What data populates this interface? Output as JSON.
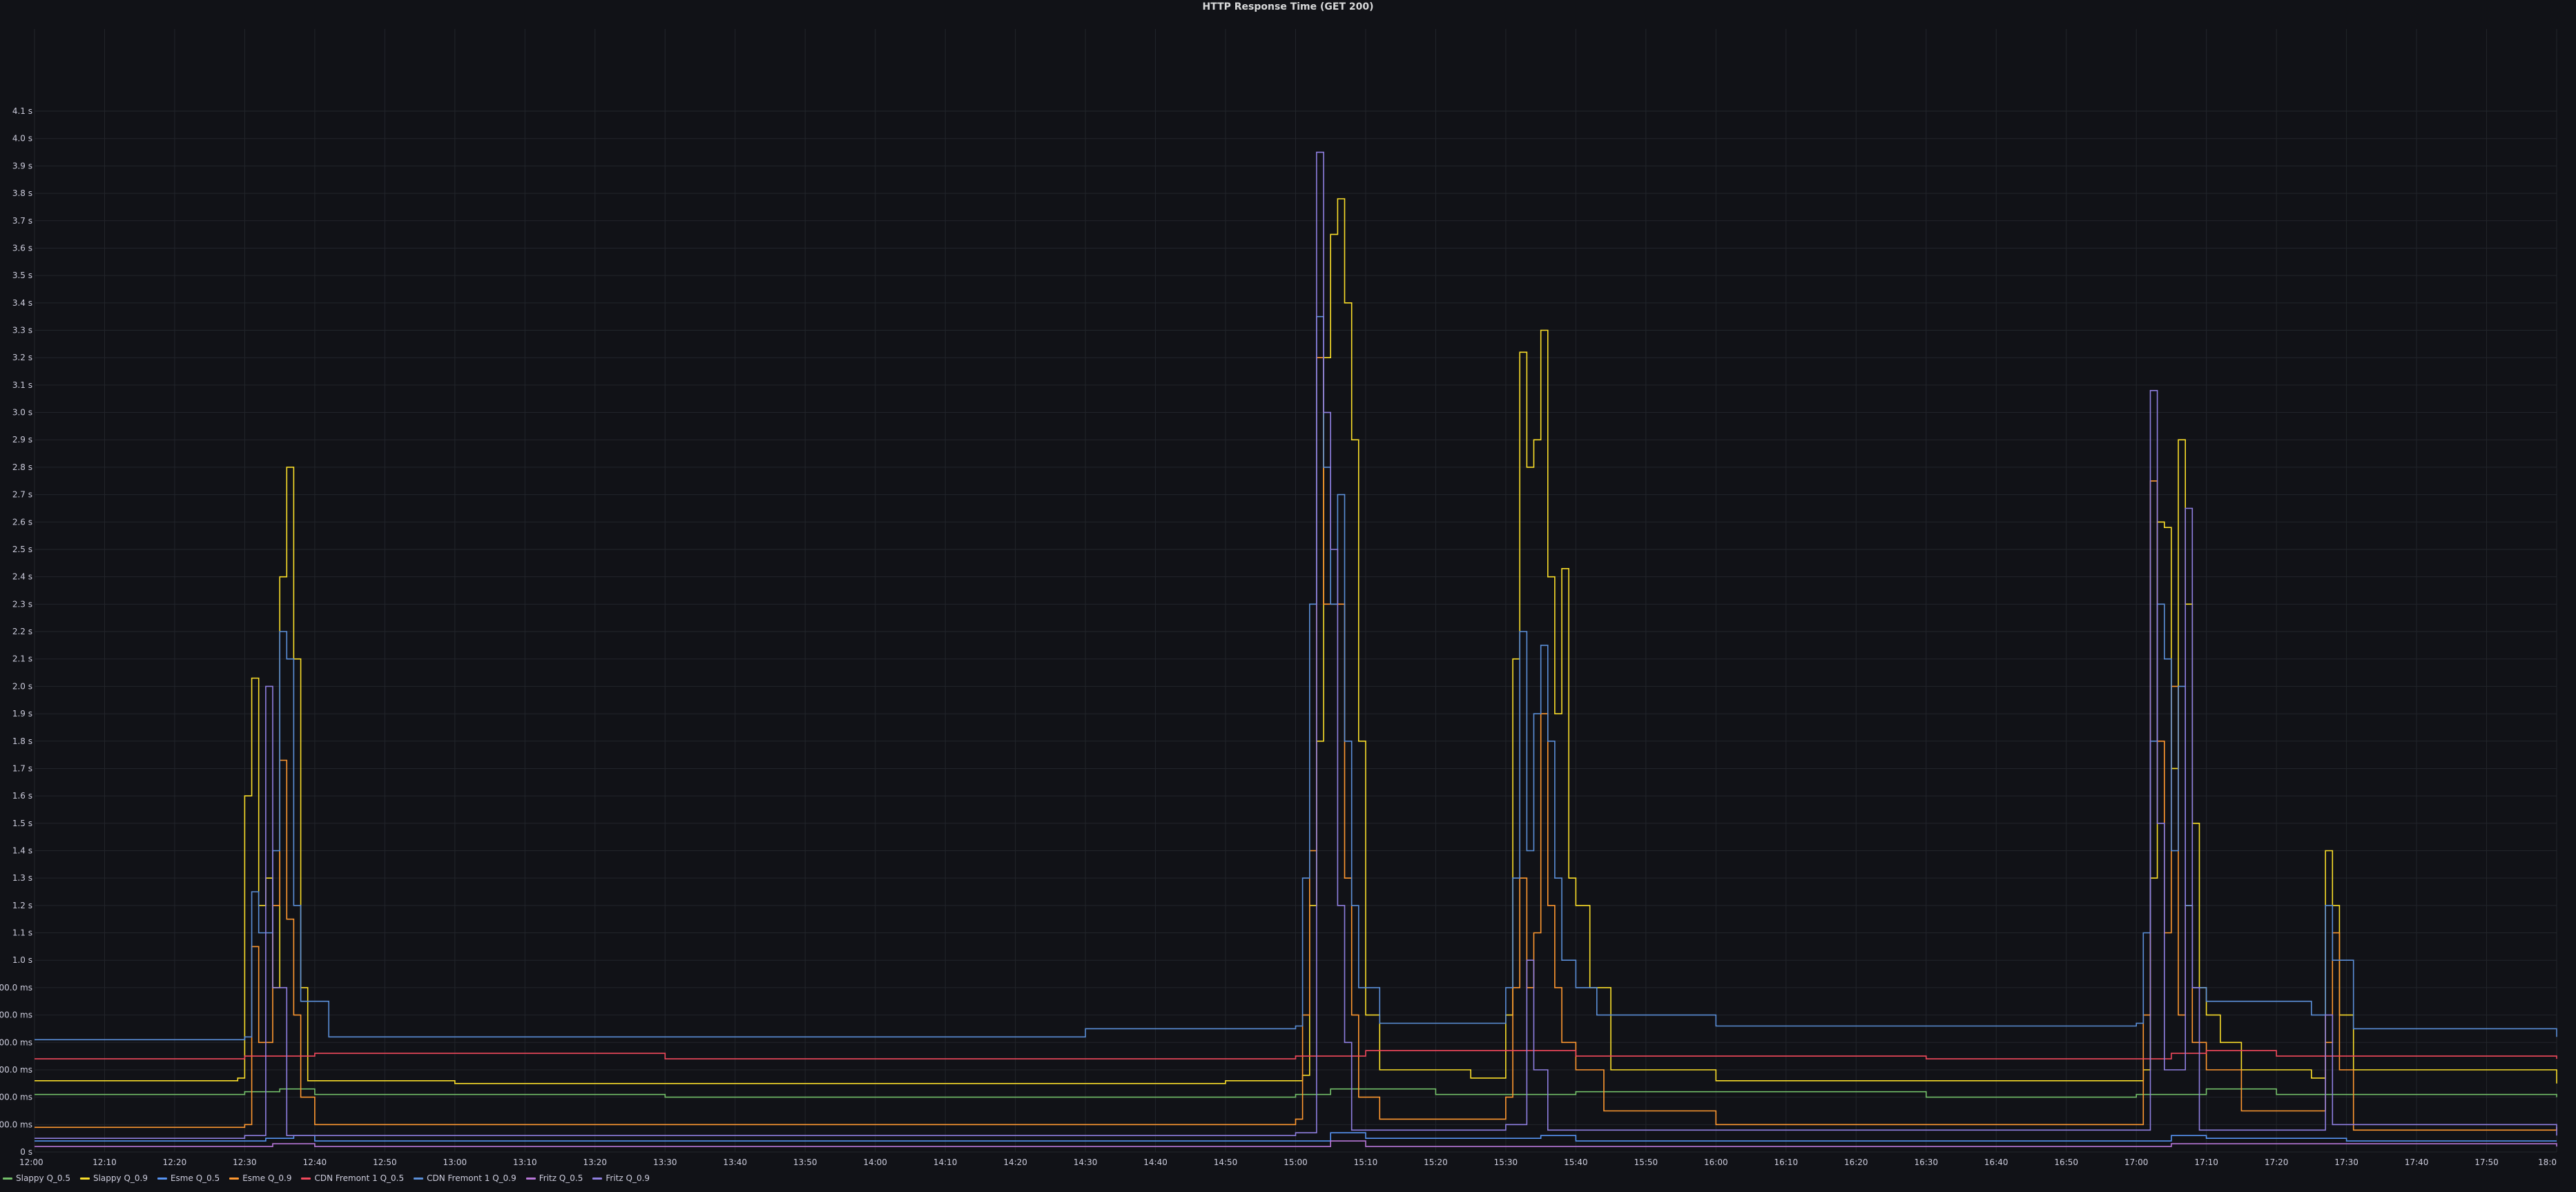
{
  "chart_data": {
    "type": "line",
    "title": "HTTP Response Time (GET 200)",
    "xlabel": "",
    "ylabel": "",
    "x_ticks": [
      "12:00",
      "12:10",
      "12:20",
      "12:30",
      "12:40",
      "12:50",
      "13:00",
      "13:10",
      "13:20",
      "13:30",
      "13:40",
      "13:50",
      "14:00",
      "14:10",
      "14:20",
      "14:30",
      "14:40",
      "14:50",
      "15:00",
      "15:10",
      "15:20",
      "15:30",
      "15:40",
      "15:50",
      "16:00",
      "16:10",
      "16:20",
      "16:30",
      "16:40",
      "16:50",
      "17:00",
      "17:10",
      "17:20",
      "17:30",
      "17:40",
      "17:50",
      "18:0"
    ],
    "y_ticks": [
      "0 s",
      "00.0 ms",
      "00.0 ms",
      "00.0 ms",
      "00.0 ms",
      "00.0 ms",
      "00.0 ms",
      "1.0 s",
      "1.1 s",
      "1.2 s",
      "1.3 s",
      "1.4 s",
      "1.5 s",
      "1.6 s",
      "1.7 s",
      "1.8 s",
      "1.9 s",
      "2.0 s",
      "2.1 s",
      "2.2 s",
      "2.3 s",
      "2.4 s",
      "2.5 s",
      "2.6 s",
      "2.7 s",
      "2.8 s",
      "2.9 s",
      "3.0 s",
      "3.1 s",
      "3.2 s",
      "3.3 s",
      "3.4 s",
      "3.5 s",
      "3.6 s",
      "3.7 s",
      "3.8 s",
      "3.9 s",
      "4.0 s",
      "4.1 s"
    ],
    "xlim": [
      "12:00",
      "18:00"
    ],
    "ylim": [
      0,
      4.1
    ],
    "y_unit": "s",
    "grid": true,
    "legend_position": "bottom-left",
    "series": [
      {
        "name": "Slappy Q_0.5",
        "color": "#73bf69",
        "points": [
          [
            "12:00",
            0.21
          ],
          [
            "12:30",
            0.22
          ],
          [
            "12:35",
            0.23
          ],
          [
            "12:40",
            0.21
          ],
          [
            "13:30",
            0.2
          ],
          [
            "14:30",
            0.2
          ],
          [
            "15:00",
            0.21
          ],
          [
            "15:05",
            0.23
          ],
          [
            "15:20",
            0.21
          ],
          [
            "15:40",
            0.22
          ],
          [
            "16:30",
            0.2
          ],
          [
            "17:00",
            0.21
          ],
          [
            "17:10",
            0.23
          ],
          [
            "17:20",
            0.21
          ],
          [
            "18:00",
            0.2
          ]
        ]
      },
      {
        "name": "Slappy Q_0.9",
        "color": "#fade2a",
        "points": [
          [
            "12:00",
            0.26
          ],
          [
            "12:29",
            0.27
          ],
          [
            "12:30",
            1.3
          ],
          [
            "12:31",
            1.73
          ],
          [
            "12:32",
            0.9
          ],
          [
            "12:33",
            1.0
          ],
          [
            "12:34",
            0.6
          ],
          [
            "12:35",
            2.1
          ],
          [
            "12:36",
            2.5
          ],
          [
            "12:37",
            1.8
          ],
          [
            "12:38",
            0.6
          ],
          [
            "12:39",
            0.26
          ],
          [
            "13:00",
            0.25
          ],
          [
            "14:00",
            0.25
          ],
          [
            "14:50",
            0.26
          ],
          [
            "15:01",
            0.28
          ],
          [
            "15:02",
            0.9
          ],
          [
            "15:03",
            1.5
          ],
          [
            "15:04",
            2.9
          ],
          [
            "15:05",
            3.35
          ],
          [
            "15:06",
            3.48
          ],
          [
            "15:07",
            3.1
          ],
          [
            "15:08",
            2.6
          ],
          [
            "15:09",
            1.5
          ],
          [
            "15:10",
            0.5
          ],
          [
            "15:12",
            0.3
          ],
          [
            "15:25",
            0.27
          ],
          [
            "15:30",
            0.5
          ],
          [
            "15:31",
            1.8
          ],
          [
            "15:32",
            2.92
          ],
          [
            "15:33",
            2.5
          ],
          [
            "15:34",
            2.6
          ],
          [
            "15:35",
            3.0
          ],
          [
            "15:36",
            2.1
          ],
          [
            "15:37",
            1.6
          ],
          [
            "15:38",
            2.13
          ],
          [
            "15:39",
            1.0
          ],
          [
            "15:40",
            0.9
          ],
          [
            "15:42",
            0.6
          ],
          [
            "15:45",
            0.3
          ],
          [
            "16:00",
            0.26
          ],
          [
            "17:00",
            0.26
          ],
          [
            "17:01",
            0.3
          ],
          [
            "17:02",
            1.0
          ],
          [
            "17:03",
            2.3
          ],
          [
            "17:04",
            2.28
          ],
          [
            "17:05",
            1.4
          ],
          [
            "17:06",
            2.6
          ],
          [
            "17:07",
            2.0
          ],
          [
            "17:08",
            1.2
          ],
          [
            "17:09",
            0.6
          ],
          [
            "17:10",
            0.5
          ],
          [
            "17:12",
            0.4
          ],
          [
            "17:15",
            0.3
          ],
          [
            "17:25",
            0.27
          ],
          [
            "17:27",
            1.1
          ],
          [
            "17:28",
            0.9
          ],
          [
            "17:29",
            0.5
          ],
          [
            "17:31",
            0.3
          ],
          [
            "18:00",
            0.25
          ]
        ]
      },
      {
        "name": "Esme Q_0.5",
        "color": "#5794f2",
        "points": [
          [
            "12:00",
            0.04
          ],
          [
            "12:30",
            0.04
          ],
          [
            "12:33",
            0.05
          ],
          [
            "12:37",
            0.06
          ],
          [
            "12:40",
            0.04
          ],
          [
            "15:00",
            0.04
          ],
          [
            "15:05",
            0.07
          ],
          [
            "15:10",
            0.05
          ],
          [
            "15:35",
            0.06
          ],
          [
            "15:40",
            0.04
          ],
          [
            "17:05",
            0.06
          ],
          [
            "17:10",
            0.05
          ],
          [
            "17:30",
            0.04
          ],
          [
            "18:00",
            0.04
          ]
        ]
      },
      {
        "name": "Esme Q_0.9",
        "color": "#ff9830",
        "points": [
          [
            "12:00",
            0.09
          ],
          [
            "12:30",
            0.1
          ],
          [
            "12:31",
            0.75
          ],
          [
            "12:32",
            0.4
          ],
          [
            "12:34",
            0.9
          ],
          [
            "12:35",
            1.43
          ],
          [
            "12:36",
            0.85
          ],
          [
            "12:37",
            0.5
          ],
          [
            "12:38",
            0.2
          ],
          [
            "12:40",
            0.1
          ],
          [
            "14:00",
            0.1
          ],
          [
            "15:00",
            0.12
          ],
          [
            "15:01",
            0.5
          ],
          [
            "15:02",
            1.1
          ],
          [
            "15:03",
            2.9
          ],
          [
            "15:04",
            2.0
          ],
          [
            "15:05",
            2.0
          ],
          [
            "15:06",
            2.0
          ],
          [
            "15:07",
            1.0
          ],
          [
            "15:08",
            0.5
          ],
          [
            "15:09",
            0.2
          ],
          [
            "15:12",
            0.12
          ],
          [
            "15:30",
            0.2
          ],
          [
            "15:31",
            0.6
          ],
          [
            "15:32",
            1.0
          ],
          [
            "15:33",
            0.6
          ],
          [
            "15:34",
            0.8
          ],
          [
            "15:35",
            1.6
          ],
          [
            "15:36",
            0.9
          ],
          [
            "15:37",
            0.6
          ],
          [
            "15:38",
            0.4
          ],
          [
            "15:40",
            0.3
          ],
          [
            "15:44",
            0.15
          ],
          [
            "16:00",
            0.1
          ],
          [
            "17:00",
            0.1
          ],
          [
            "17:01",
            0.5
          ],
          [
            "17:02",
            2.45
          ],
          [
            "17:03",
            1.5
          ],
          [
            "17:04",
            0.8
          ],
          [
            "17:05",
            1.7
          ],
          [
            "17:06",
            0.5
          ],
          [
            "17:07",
            0.9
          ],
          [
            "17:08",
            0.4
          ],
          [
            "17:10",
            0.3
          ],
          [
            "17:15",
            0.15
          ],
          [
            "17:27",
            0.4
          ],
          [
            "17:28",
            0.8
          ],
          [
            "17:29",
            0.3
          ],
          [
            "17:31",
            0.08
          ],
          [
            "18:00",
            0.09
          ]
        ]
      },
      {
        "name": "CDN Fremont 1 Q_0.5",
        "color": "#f2495c",
        "points": [
          [
            "12:00",
            0.34
          ],
          [
            "12:30",
            0.35
          ],
          [
            "12:40",
            0.36
          ],
          [
            "13:30",
            0.34
          ],
          [
            "14:30",
            0.34
          ],
          [
            "15:00",
            0.35
          ],
          [
            "15:10",
            0.37
          ],
          [
            "15:40",
            0.35
          ],
          [
            "16:30",
            0.34
          ],
          [
            "17:05",
            0.36
          ],
          [
            "17:10",
            0.37
          ],
          [
            "17:20",
            0.35
          ],
          [
            "18:00",
            0.34
          ]
        ]
      },
      {
        "name": "CDN Fremont 1 Q_0.9",
        "color": "#5b8fd8",
        "points": [
          [
            "12:00",
            0.41
          ],
          [
            "12:30",
            0.42
          ],
          [
            "12:31",
            0.95
          ],
          [
            "12:32",
            0.8
          ],
          [
            "12:34",
            1.1
          ],
          [
            "12:35",
            1.9
          ],
          [
            "12:36",
            1.8
          ],
          [
            "12:37",
            0.9
          ],
          [
            "12:38",
            0.55
          ],
          [
            "12:40",
            0.55
          ],
          [
            "12:42",
            0.42
          ],
          [
            "13:00",
            0.42
          ],
          [
            "14:00",
            0.42
          ],
          [
            "14:30",
            0.45
          ],
          [
            "15:00",
            0.46
          ],
          [
            "15:01",
            1.0
          ],
          [
            "15:02",
            2.0
          ],
          [
            "15:03",
            3.05
          ],
          [
            "15:04",
            2.5
          ],
          [
            "15:05",
            2.0
          ],
          [
            "15:06",
            2.4
          ],
          [
            "15:07",
            1.5
          ],
          [
            "15:08",
            0.9
          ],
          [
            "15:09",
            0.6
          ],
          [
            "15:12",
            0.47
          ],
          [
            "15:30",
            0.6
          ],
          [
            "15:31",
            1.0
          ],
          [
            "15:32",
            1.9
          ],
          [
            "15:33",
            1.1
          ],
          [
            "15:34",
            1.6
          ],
          [
            "15:35",
            1.85
          ],
          [
            "15:36",
            1.5
          ],
          [
            "15:37",
            1.0
          ],
          [
            "15:38",
            0.7
          ],
          [
            "15:40",
            0.6
          ],
          [
            "15:43",
            0.5
          ],
          [
            "16:00",
            0.46
          ],
          [
            "17:00",
            0.47
          ],
          [
            "17:01",
            0.8
          ],
          [
            "17:02",
            1.5
          ],
          [
            "17:03",
            2.0
          ],
          [
            "17:04",
            1.8
          ],
          [
            "17:05",
            1.1
          ],
          [
            "17:06",
            1.7
          ],
          [
            "17:07",
            0.9
          ],
          [
            "17:08",
            0.6
          ],
          [
            "17:10",
            0.55
          ],
          [
            "17:25",
            0.5
          ],
          [
            "17:27",
            0.9
          ],
          [
            "17:28",
            0.7
          ],
          [
            "17:29",
            0.7
          ],
          [
            "17:31",
            0.45
          ],
          [
            "18:00",
            0.42
          ]
        ]
      },
      {
        "name": "Fritz Q_0.5",
        "color": "#b877d9",
        "points": [
          [
            "12:00",
            0.02
          ],
          [
            "12:30",
            0.02
          ],
          [
            "12:34",
            0.03
          ],
          [
            "12:40",
            0.02
          ],
          [
            "15:00",
            0.02
          ],
          [
            "15:05",
            0.04
          ],
          [
            "15:10",
            0.02
          ],
          [
            "17:05",
            0.03
          ],
          [
            "18:00",
            0.02
          ]
        ]
      },
      {
        "name": "Fritz Q_0.9",
        "color": "#8f7fe0",
        "points": [
          [
            "12:00",
            0.05
          ],
          [
            "12:30",
            0.06
          ],
          [
            "12:33",
            1.7
          ],
          [
            "12:34",
            0.6
          ],
          [
            "12:36",
            0.06
          ],
          [
            "15:00",
            0.07
          ],
          [
            "15:03",
            3.65
          ],
          [
            "15:04",
            2.7
          ],
          [
            "15:05",
            2.2
          ],
          [
            "15:06",
            0.9
          ],
          [
            "15:07",
            0.4
          ],
          [
            "15:08",
            0.08
          ],
          [
            "15:30",
            0.1
          ],
          [
            "15:33",
            0.7
          ],
          [
            "15:34",
            0.3
          ],
          [
            "15:36",
            0.08
          ],
          [
            "17:00",
            0.08
          ],
          [
            "17:02",
            2.78
          ],
          [
            "17:03",
            1.2
          ],
          [
            "17:04",
            0.3
          ],
          [
            "17:07",
            2.35
          ],
          [
            "17:08",
            0.6
          ],
          [
            "17:09",
            0.08
          ],
          [
            "17:27",
            0.5
          ],
          [
            "17:28",
            0.1
          ],
          [
            "18:00",
            0.06
          ]
        ]
      }
    ]
  }
}
